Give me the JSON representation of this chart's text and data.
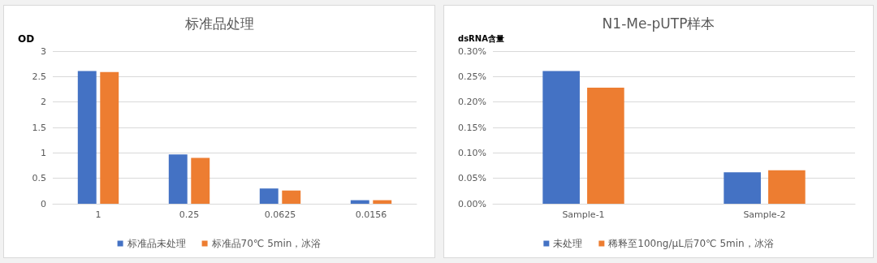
{
  "chart_data": [
    {
      "type": "bar",
      "title": "标准品处理",
      "ylabel": "OD",
      "categories": [
        "1",
        "0.25",
        "0.0625",
        "0.0156"
      ],
      "series": [
        {
          "name": "标准品未处理",
          "color": "#4472c4",
          "values": [
            2.61,
            0.97,
            0.3,
            0.07
          ]
        },
        {
          "name": "标准品70℃ 5min，冰浴",
          "color": "#ed7d31",
          "values": [
            2.59,
            0.9,
            0.26,
            0.07
          ]
        }
      ],
      "ylim": [
        0,
        3
      ],
      "yticks": [
        0,
        0.5,
        1,
        1.5,
        2,
        2.5,
        3
      ],
      "grid": "y",
      "legend": "bottom"
    },
    {
      "type": "bar",
      "title": "N1-Me-pUTP样本",
      "ylabel": "dsRNA含量",
      "categories": [
        "Sample-1",
        "Sample-2"
      ],
      "series": [
        {
          "name": "未处理",
          "color": "#4472c4",
          "values": [
            0.261,
            0.062
          ]
        },
        {
          "name": "稀释至100ng/μL后70℃ 5min，冰浴",
          "color": "#ed7d31",
          "values": [
            0.228,
            0.066
          ]
        }
      ],
      "ylim": [
        0,
        0.3
      ],
      "yticks": [
        {
          "value": 0,
          "label": "0.00%"
        },
        {
          "value": 0.05,
          "label": "0.05%"
        },
        {
          "value": 0.1,
          "label": "0.10%"
        },
        {
          "value": 0.15,
          "label": "0.15%"
        },
        {
          "value": 0.2,
          "label": "0.20%"
        },
        {
          "value": 0.25,
          "label": "0.25%"
        },
        {
          "value": 0.3,
          "label": "0.30%"
        }
      ],
      "grid": "y",
      "legend": "bottom"
    }
  ]
}
